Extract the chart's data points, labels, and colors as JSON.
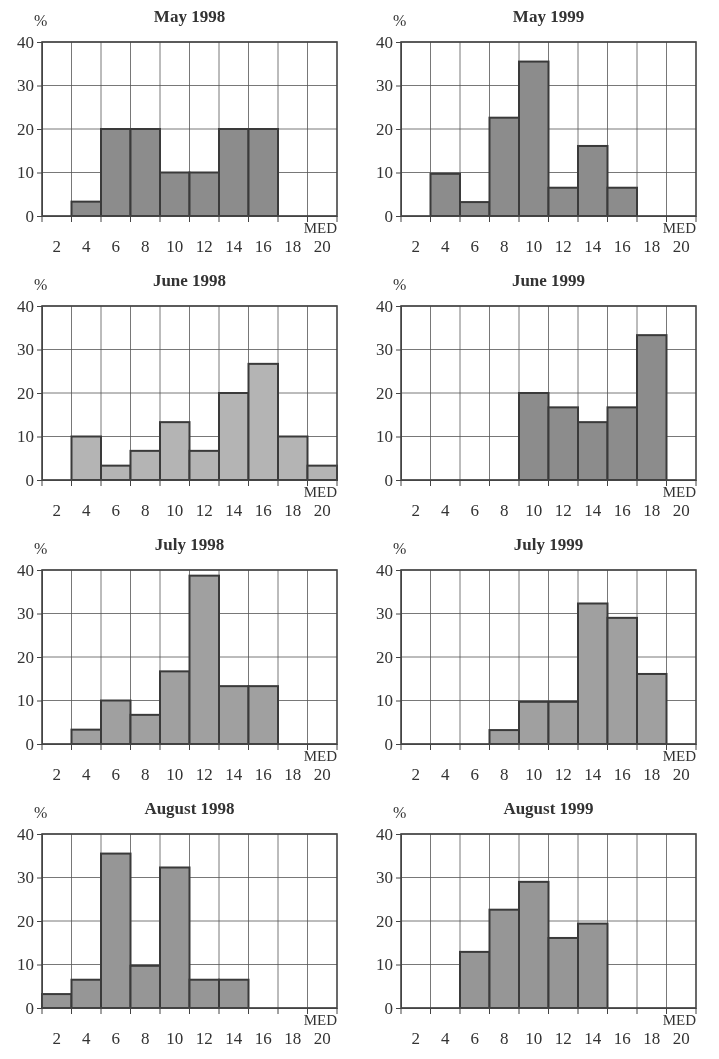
{
  "chart_data": [
    {
      "type": "bar",
      "title": "May  1998",
      "ylabel": "%",
      "xlabel": "MED",
      "categories": [
        "2",
        "4",
        "6",
        "8",
        "10",
        "12",
        "14",
        "16",
        "18",
        "20"
      ],
      "values": [
        0,
        3.3,
        20,
        20,
        10,
        10,
        20,
        20,
        0,
        0
      ],
      "color": "#8c8c8c",
      "ylim": [
        0,
        40
      ],
      "yticks": [
        0,
        10,
        20,
        30,
        40
      ],
      "grid": true
    },
    {
      "type": "bar",
      "title": "May  1999",
      "ylabel": "%",
      "xlabel": "MED",
      "categories": [
        "2",
        "4",
        "6",
        "8",
        "10",
        "12",
        "14",
        "16",
        "18",
        "20"
      ],
      "values": [
        0,
        9.7,
        3.2,
        22.6,
        35.5,
        6.5,
        16.1,
        6.5,
        0,
        0
      ],
      "color": "#8c8c8c",
      "ylim": [
        0,
        40
      ],
      "yticks": [
        0,
        10,
        20,
        30,
        40
      ],
      "grid": true
    },
    {
      "type": "bar",
      "title": "June  1998",
      "ylabel": "%",
      "xlabel": "MED",
      "categories": [
        "2",
        "4",
        "6",
        "8",
        "10",
        "12",
        "14",
        "16",
        "18",
        "20"
      ],
      "values": [
        0,
        10,
        3.3,
        6.7,
        13.3,
        6.7,
        20,
        26.7,
        10,
        3.3
      ],
      "color": "#b4b4b4",
      "ylim": [
        0,
        40
      ],
      "yticks": [
        0,
        10,
        20,
        30,
        40
      ],
      "grid": true
    },
    {
      "type": "bar",
      "title": "June 1999",
      "ylabel": "%",
      "xlabel": "MED",
      "categories": [
        "2",
        "4",
        "6",
        "8",
        "10",
        "12",
        "14",
        "16",
        "18",
        "20"
      ],
      "values": [
        0,
        0,
        0,
        0,
        20,
        16.7,
        13.3,
        16.7,
        33.3,
        0
      ],
      "color": "#8c8c8c",
      "ylim": [
        0,
        40
      ],
      "yticks": [
        0,
        10,
        20,
        30,
        40
      ],
      "grid": true
    },
    {
      "type": "bar",
      "title": "July  1998",
      "ylabel": "%",
      "xlabel": "MED",
      "categories": [
        "2",
        "4",
        "6",
        "8",
        "10",
        "12",
        "14",
        "16",
        "18",
        "20"
      ],
      "values": [
        0,
        3.3,
        10,
        6.7,
        16.7,
        38.7,
        13.3,
        13.3,
        0,
        0
      ],
      "color": "#a0a0a0",
      "ylim": [
        0,
        40
      ],
      "yticks": [
        0,
        10,
        20,
        30,
        40
      ],
      "grid": true
    },
    {
      "type": "bar",
      "title": "July 1999",
      "ylabel": "%",
      "xlabel": "MED",
      "categories": [
        "2",
        "4",
        "6",
        "8",
        "10",
        "12",
        "14",
        "16",
        "18",
        "20"
      ],
      "values": [
        0,
        0,
        0,
        3.2,
        9.7,
        9.7,
        32.3,
        29,
        16.1,
        0
      ],
      "color": "#a0a0a0",
      "ylim": [
        0,
        40
      ],
      "yticks": [
        0,
        10,
        20,
        30,
        40
      ],
      "grid": true
    },
    {
      "type": "bar",
      "title": "August  1998",
      "ylabel": "%",
      "xlabel": "MED",
      "categories": [
        "2",
        "4",
        "6",
        "8",
        "10",
        "12",
        "14",
        "16",
        "18",
        "20"
      ],
      "values": [
        3.2,
        6.5,
        35.5,
        9.7,
        32.3,
        6.5,
        6.5,
        0,
        0,
        0
      ],
      "color": "#969696",
      "ylim": [
        0,
        40
      ],
      "yticks": [
        0,
        10,
        20,
        30,
        40
      ],
      "grid": true
    },
    {
      "type": "bar",
      "title": "August 1999",
      "ylabel": "%",
      "xlabel": "MED",
      "categories": [
        "2",
        "4",
        "6",
        "8",
        "10",
        "12",
        "14",
        "16",
        "18",
        "20"
      ],
      "values": [
        0,
        0,
        12.9,
        22.6,
        29,
        16.1,
        19.4,
        0,
        0,
        0
      ],
      "color": "#969696",
      "ylim": [
        0,
        40
      ],
      "yticks": [
        0,
        10,
        20,
        30,
        40
      ],
      "grid": true
    }
  ]
}
